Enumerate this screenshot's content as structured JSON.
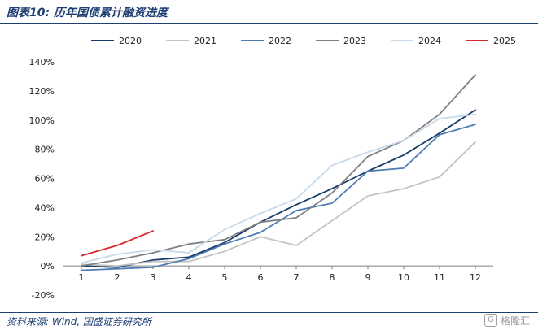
{
  "header": {
    "title": "图表10:  历年国债累计融资进度"
  },
  "footer": {
    "source": "资料来源:  Wind,  国盛证券研究所"
  },
  "watermark": {
    "text": "格隆汇",
    "icon": "gelonghui-logo-icon"
  },
  "chart_data": {
    "type": "line",
    "title": "",
    "xlabel": "",
    "ylabel": "",
    "x": [
      1,
      2,
      3,
      4,
      5,
      6,
      7,
      8,
      9,
      10,
      11,
      12
    ],
    "ylim": [
      -20,
      140
    ],
    "yticks": [
      -20,
      0,
      20,
      40,
      60,
      80,
      100,
      120,
      140
    ],
    "ytick_labels": [
      "-20%",
      "0%",
      "20%",
      "40%",
      "60%",
      "80%",
      "100%",
      "120%",
      "140%"
    ],
    "grid": false,
    "legend": "top",
    "series": [
      {
        "name": "2020",
        "color": "#1a3a6b",
        "values": [
          0,
          -1,
          4,
          6,
          16,
          30,
          42,
          53,
          65,
          76,
          91,
          107
        ]
      },
      {
        "name": "2021",
        "color": "#c3c3c3",
        "values": [
          1,
          0,
          3,
          3,
          10,
          20,
          14,
          31,
          48,
          53,
          61,
          85
        ]
      },
      {
        "name": "2022",
        "color": "#4f7db3",
        "values": [
          -3,
          -2,
          -1,
          5,
          15,
          23,
          38,
          43,
          65,
          67,
          90,
          97
        ]
      },
      {
        "name": "2023",
        "color": "#808080",
        "values": [
          0,
          4,
          9,
          15,
          18,
          30,
          33,
          50,
          75,
          86,
          104,
          131
        ]
      },
      {
        "name": "2024",
        "color": "#c7d9ea",
        "values": [
          2,
          8,
          11,
          9,
          25,
          36,
          46,
          69,
          78,
          86,
          101,
          104
        ]
      },
      {
        "name": "2025",
        "color": "#d9262b",
        "values": [
          7,
          14,
          24,
          null,
          null,
          null,
          null,
          null,
          null,
          null,
          null,
          null
        ]
      }
    ]
  }
}
